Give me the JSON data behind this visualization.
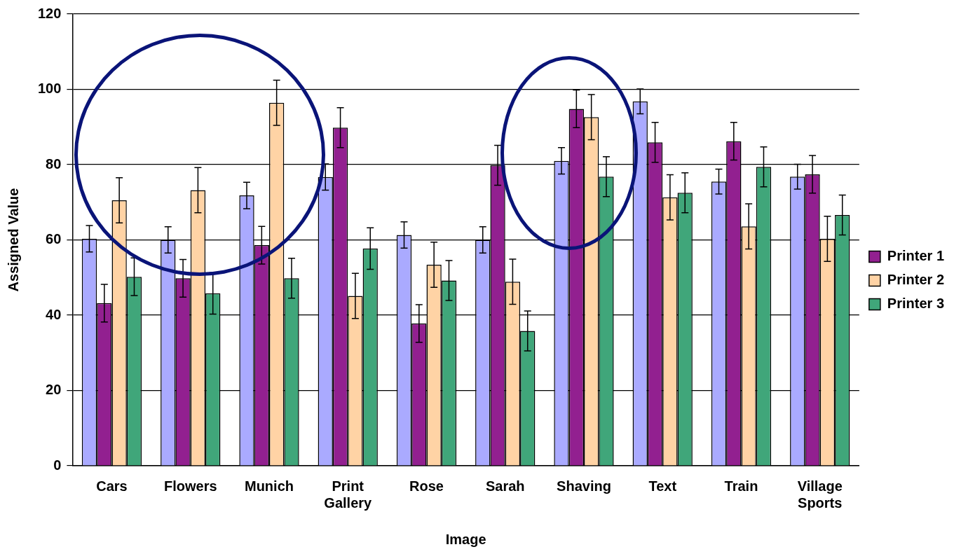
{
  "chart_data": {
    "type": "bar",
    "xlabel": "Image",
    "ylabel": "Assigned Value",
    "categories": [
      "Cars",
      "Flowers",
      "Munich",
      "Print Gallery",
      "Rose",
      "Sarah",
      "Shaving",
      "Text",
      "Train",
      "Village Sports"
    ],
    "series": [
      {
        "color": "#aaaaff",
        "values": [
          60.3,
          60,
          71.8,
          76.7,
          61.3,
          60,
          81,
          96.8,
          75.5,
          76.8
        ],
        "errors": [
          3.5,
          3.5,
          3.5,
          3.5,
          3.5,
          3.5,
          3.5,
          3.3,
          3.3,
          3.3
        ]
      },
      {
        "name": "Printer 1",
        "color": "#922090",
        "values": [
          43.2,
          49.8,
          58.6,
          89.8,
          37.8,
          79.8,
          94.8,
          85.9,
          86.2,
          77.4
        ],
        "errors": [
          5,
          5,
          5,
          5.3,
          5,
          5.3,
          5,
          5.3,
          5,
          5
        ]
      },
      {
        "name": "Printer 2",
        "color": "#ffd3a5",
        "values": [
          70.5,
          73.2,
          96.4,
          45.1,
          53.4,
          48.9,
          92.6,
          71.3,
          63.6,
          60.3
        ],
        "errors": [
          6,
          6,
          6,
          6,
          6,
          6,
          6,
          6,
          6,
          6
        ]
      },
      {
        "name": "Printer 3",
        "color": "#40a67a",
        "values": [
          50.2,
          45.8,
          49.8,
          57.7,
          49.2,
          35.8,
          76.8,
          72.5,
          79.4,
          66.6
        ],
        "errors": [
          5,
          5.5,
          5.3,
          5.5,
          5.3,
          5.3,
          5.3,
          5.3,
          5.3,
          5.3
        ]
      }
    ],
    "ylim": [
      0,
      120
    ],
    "yticks": [
      0,
      20,
      40,
      60,
      80,
      100,
      120
    ],
    "grid": "y",
    "legend": "right"
  }
}
